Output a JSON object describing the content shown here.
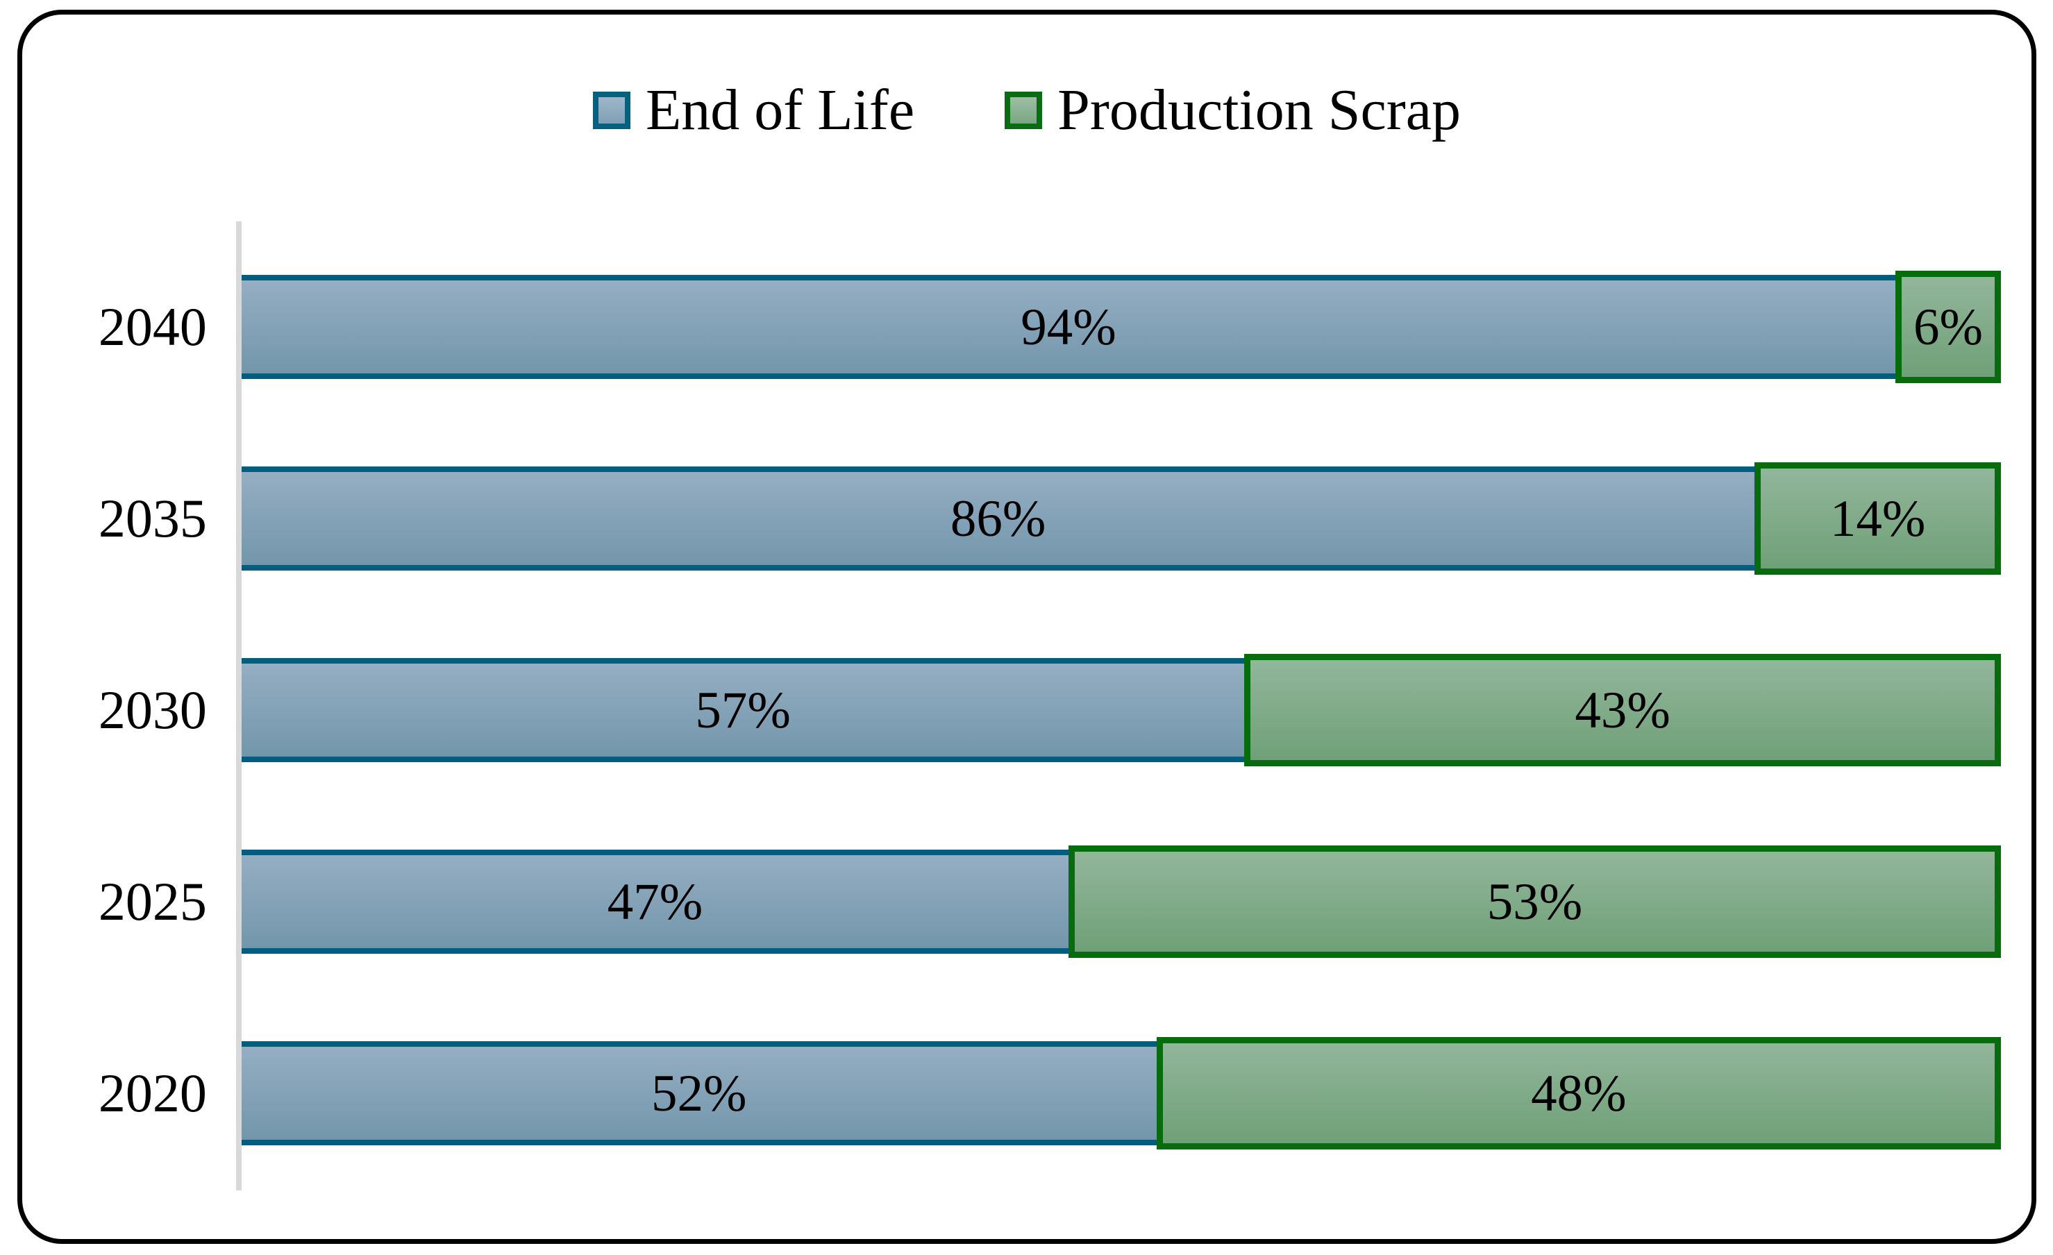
{
  "legend": {
    "items": [
      {
        "label": "End of Life",
        "swatch_border": "#06607f",
        "swatch_top": "#9fb6c8",
        "swatch_bottom": "#7ea0b6"
      },
      {
        "label": "Production Scrap",
        "swatch_border": "#0a6c12",
        "swatch_top": "#9dbfa5",
        "swatch_bottom": "#79a682"
      }
    ]
  },
  "chart_data": {
    "type": "bar",
    "orientation": "horizontal-stacked",
    "title": "",
    "xlabel": "",
    "ylabel": "",
    "categories": [
      "2040",
      "2035",
      "2030",
      "2025",
      "2020"
    ],
    "series": [
      {
        "name": "End of Life",
        "values": [
          94,
          86,
          57,
          47,
          52
        ],
        "fill_top": "#95aec3",
        "fill_bottom": "#7396ab",
        "border": "#015d7e"
      },
      {
        "name": "Production Scrap",
        "values": [
          6,
          14,
          43,
          53,
          48
        ],
        "fill_top": "#92b69b",
        "fill_bottom": "#6fa077",
        "border": "#076c0d"
      }
    ],
    "data_label_suffix": "%",
    "data_labels": [
      [
        "94%",
        "6%"
      ],
      [
        "86%",
        "14%"
      ],
      [
        "57%",
        "43%"
      ],
      [
        "47%",
        "53%"
      ],
      [
        "52%",
        "48%"
      ]
    ],
    "xlim": [
      0,
      100
    ],
    "legend_position": "top-center",
    "gridlines": false,
    "axis_color": "#d9d9d9",
    "frame_color": "#000000",
    "background": "#ffffff"
  }
}
